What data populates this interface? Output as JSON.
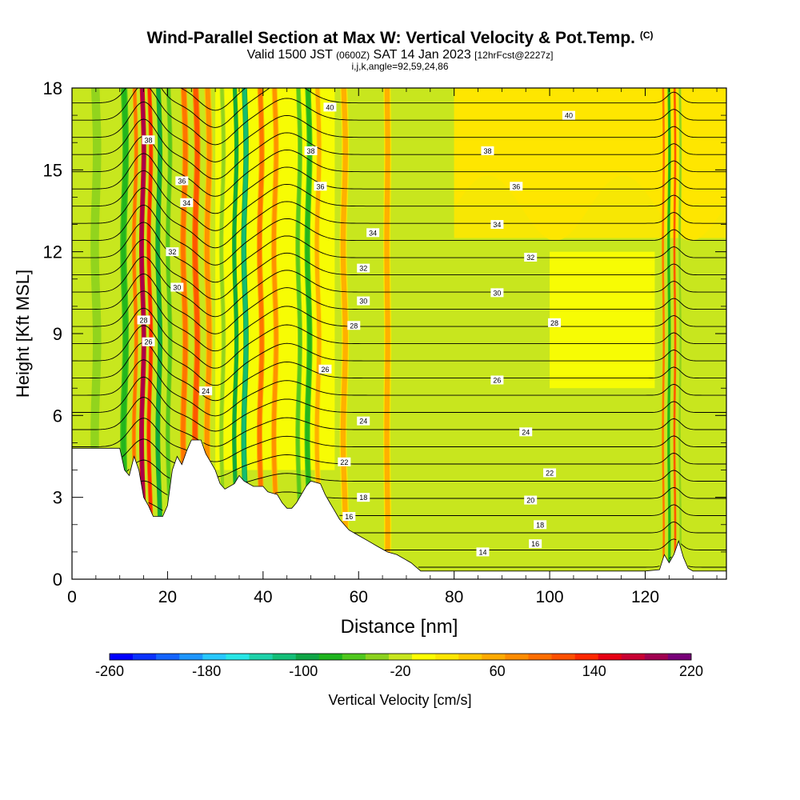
{
  "title": {
    "main": "Wind-Parallel Section at Max W: Vertical Velocity & Pot.Temp.",
    "copyright": "(C)",
    "valid_prefix": "Valid 1500 JST",
    "valid_utc": "(0600Z)",
    "valid_date": "SAT 14 Jan 2023",
    "forecast": "[12hrFcst@2227z]",
    "params": "i,j,k,angle=92,59,24,86"
  },
  "chart_data": {
    "type": "heatmap",
    "xlabel": "Distance [nm]",
    "ylabel": "Height [Kft MSL]",
    "xlim": [
      0,
      137
    ],
    "ylim": [
      0,
      18
    ],
    "x_ticks": [
      0,
      20,
      40,
      60,
      80,
      100,
      120
    ],
    "y_ticks": [
      0,
      3,
      6,
      9,
      12,
      15,
      18
    ],
    "colorbar": {
      "label": "Vertical Velocity [cm/s]",
      "min": -260,
      "max": 220,
      "step": 20,
      "tick_labels": [
        "-260",
        "-180",
        "-100",
        "-20",
        "60",
        "140",
        "220"
      ],
      "colors": [
        "#0000ff",
        "#0a32ff",
        "#1464ff",
        "#1e96ff",
        "#28c8ff",
        "#28e6e6",
        "#1ed2aa",
        "#14be78",
        "#0fa546",
        "#1eb41e",
        "#50c81e",
        "#8cd21e",
        "#c8e61e",
        "#ffff00",
        "#ffe600",
        "#ffc800",
        "#ffaa00",
        "#ff8c00",
        "#ff6e00",
        "#ff5000",
        "#ff2800",
        "#e60014",
        "#c80032",
        "#a00050",
        "#780078"
      ]
    },
    "topography": [
      [
        0,
        4.8
      ],
      [
        10,
        4.8
      ],
      [
        11,
        4.0
      ],
      [
        12,
        3.8
      ],
      [
        13,
        4.5
      ],
      [
        14,
        4.0
      ],
      [
        15,
        3.0
      ],
      [
        16,
        2.7
      ],
      [
        17,
        2.3
      ],
      [
        19,
        2.3
      ],
      [
        20,
        2.7
      ],
      [
        21,
        4.0
      ],
      [
        22,
        4.5
      ],
      [
        23,
        4.2
      ],
      [
        24,
        4.7
      ],
      [
        25,
        5.1
      ],
      [
        27,
        5.1
      ],
      [
        28,
        4.6
      ],
      [
        29,
        4.3
      ],
      [
        30,
        4.0
      ],
      [
        31,
        3.5
      ],
      [
        32,
        3.3
      ],
      [
        34,
        3.5
      ],
      [
        35,
        3.8
      ],
      [
        36,
        3.6
      ],
      [
        37,
        3.5
      ],
      [
        38,
        3.4
      ],
      [
        40,
        3.4
      ],
      [
        41,
        3.2
      ],
      [
        43,
        3.1
      ],
      [
        44,
        2.8
      ],
      [
        45,
        2.6
      ],
      [
        46,
        2.6
      ],
      [
        47,
        2.8
      ],
      [
        48,
        3.1
      ],
      [
        49,
        3.4
      ],
      [
        50,
        3.6
      ],
      [
        52,
        3.5
      ],
      [
        53,
        3.1
      ],
      [
        54,
        2.8
      ],
      [
        55,
        2.5
      ],
      [
        56,
        2.2
      ],
      [
        57,
        2.0
      ],
      [
        58,
        1.8
      ],
      [
        60,
        1.6
      ],
      [
        62,
        1.4
      ],
      [
        64,
        1.2
      ],
      [
        66,
        1.0
      ],
      [
        68,
        0.9
      ],
      [
        71,
        0.6
      ],
      [
        73,
        0.3
      ],
      [
        80,
        0.3
      ],
      [
        100,
        0.3
      ],
      [
        120,
        0.3
      ],
      [
        123,
        0.35
      ],
      [
        124,
        0.9
      ],
      [
        125,
        0.6
      ],
      [
        126,
        0.9
      ],
      [
        127,
        1.4
      ],
      [
        128,
        0.8
      ],
      [
        129,
        0.4
      ],
      [
        130,
        0.3
      ],
      [
        137,
        0.3
      ]
    ],
    "vertical_velocity_bands": [
      {
        "x": 5,
        "w": 2.5,
        "value": -20
      },
      {
        "x": 11,
        "w": 1.4,
        "value": -60
      },
      {
        "x": 13.2,
        "w": 0.9,
        "value": 60
      },
      {
        "x": 14.8,
        "w": 1.0,
        "value": 160
      },
      {
        "x": 16.3,
        "w": 0.9,
        "value": 100
      },
      {
        "x": 18.2,
        "w": 1.0,
        "value": -80
      },
      {
        "x": 20.3,
        "w": 1.0,
        "value": -40
      },
      {
        "x": 23.5,
        "w": 1.3,
        "value": 60
      },
      {
        "x": 26,
        "w": 1.3,
        "value": 80
      },
      {
        "x": 28.5,
        "w": 1.4,
        "value": 40
      },
      {
        "x": 31.5,
        "w": 1.0,
        "value": -20
      },
      {
        "x": 34.2,
        "w": 0.9,
        "value": -80
      },
      {
        "x": 36.2,
        "w": 1.1,
        "value": -100
      },
      {
        "x": 39.5,
        "w": 1.2,
        "value": 60
      },
      {
        "x": 42.5,
        "w": 1.2,
        "value": 40
      },
      {
        "x": 47.5,
        "w": 1.0,
        "value": -40
      },
      {
        "x": 49.5,
        "w": 1.2,
        "value": -60
      },
      {
        "x": 51.5,
        "w": 1.2,
        "value": 20
      },
      {
        "x": 57,
        "w": 1.5,
        "value": 20
      },
      {
        "x": 66,
        "w": 1.5,
        "value": 20
      },
      {
        "x": 123.8,
        "w": 0.5,
        "value": 60
      },
      {
        "x": 125,
        "w": 0.6,
        "value": -60
      },
      {
        "x": 126.2,
        "w": 0.5,
        "value": 80
      },
      {
        "x": 127.3,
        "w": 0.6,
        "value": -20
      }
    ],
    "potential_temperature": {
      "levels": [
        13,
        14,
        15,
        16,
        17,
        18,
        19,
        20,
        21,
        22,
        23,
        24,
        25,
        26,
        27,
        28,
        29,
        30,
        31,
        32,
        33,
        34,
        35,
        36,
        37,
        38,
        39,
        40,
        41
      ],
      "labels": [
        {
          "text": "14",
          "x": 86,
          "y": 1.0
        },
        {
          "text": "16",
          "x": 97,
          "y": 1.3
        },
        {
          "text": "16",
          "x": 58,
          "y": 2.3
        },
        {
          "text": "18",
          "x": 98,
          "y": 2.0
        },
        {
          "text": "18",
          "x": 61,
          "y": 3.0
        },
        {
          "text": "20",
          "x": 96,
          "y": 2.9
        },
        {
          "text": "22",
          "x": 57,
          "y": 4.3
        },
        {
          "text": "22",
          "x": 100,
          "y": 3.9
        },
        {
          "text": "24",
          "x": 61,
          "y": 5.8
        },
        {
          "text": "24",
          "x": 95,
          "y": 5.4
        },
        {
          "text": "24",
          "x": 28,
          "y": 6.9
        },
        {
          "text": "26",
          "x": 53,
          "y": 7.7
        },
        {
          "text": "26",
          "x": 89,
          "y": 7.3
        },
        {
          "text": "26",
          "x": 16,
          "y": 8.7
        },
        {
          "text": "28",
          "x": 59,
          "y": 9.3
        },
        {
          "text": "28",
          "x": 101,
          "y": 9.4
        },
        {
          "text": "28",
          "x": 15,
          "y": 9.5
        },
        {
          "text": "30",
          "x": 22,
          "y": 10.7
        },
        {
          "text": "30",
          "x": 61,
          "y": 10.2
        },
        {
          "text": "30",
          "x": 89,
          "y": 10.5
        },
        {
          "text": "32",
          "x": 21,
          "y": 12.0
        },
        {
          "text": "32",
          "x": 61,
          "y": 11.4
        },
        {
          "text": "32",
          "x": 96,
          "y": 11.8
        },
        {
          "text": "34",
          "x": 24,
          "y": 13.8
        },
        {
          "text": "34",
          "x": 63,
          "y": 12.7
        },
        {
          "text": "34",
          "x": 89,
          "y": 13.0
        },
        {
          "text": "36",
          "x": 23,
          "y": 14.6
        },
        {
          "text": "36",
          "x": 52,
          "y": 14.4
        },
        {
          "text": "36",
          "x": 93,
          "y": 14.4
        },
        {
          "text": "38",
          "x": 16,
          "y": 16.1
        },
        {
          "text": "38",
          "x": 50,
          "y": 15.7
        },
        {
          "text": "38",
          "x": 87,
          "y": 15.7
        },
        {
          "text": "40",
          "x": 54,
          "y": 17.3
        },
        {
          "text": "40",
          "x": 104,
          "y": 17.0
        }
      ]
    }
  }
}
